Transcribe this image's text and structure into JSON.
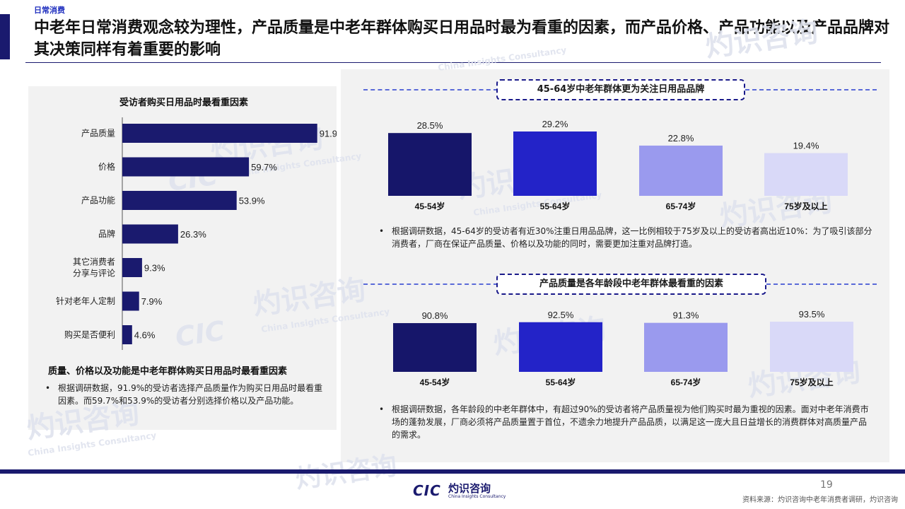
{
  "header": {
    "section_tag": "日常消费",
    "title": "中老年日常消费观念较为理性，产品质量是中老年群体购买日用品时最为看重的因素，而产品价格、产品功能以及产品品牌对其决策同样有着重要的影响"
  },
  "watermark": {
    "cic": "CIC",
    "cn": "灼识咨询",
    "en": "China Insights Consultancy"
  },
  "left": {
    "sub_heading": "质量、价格以及功能是中老年群体购买日用品时最看重因素",
    "bullet": "根据调研数据，91.9%的受访者选择产品质量作为购买日用品时最看重因素。而59.7%和53.9%的受访者分别选择价格以及产品功能。"
  },
  "right": {
    "banner1": "45-64岁中老年群体更为关注日用品品牌",
    "bullet1": "根据调研数据，45-64岁的受访者有近30%注重日用品品牌，这一比例相较于75岁及以上的受访者高出近10%：为了吸引该部分消费者，厂商在保证产品质量、价格以及功能的同时，需要更加注重对品牌打造。",
    "banner2": "产品质量是各年龄段中老年群体最看重的因素",
    "bullet2": "根据调研数据，各年龄段的中老年群体中，有超过90%的受访者将产品质量视为他们购买时最为重视的因素。面对中老年消费市场的蓬勃发展，厂商必须将产品质量置于首位，不遗余力地提升产品品质，以满足这一庞大且日益增长的消费群体对高质量产品的需求。"
  },
  "footer": {
    "page_number": "19",
    "source": "资料来源：灼识咨询中老年消费者调研，灼识咨询",
    "logo_cic": "CIC",
    "logo_cn": "灼识咨询",
    "logo_en": "China Insights Consultancy"
  },
  "chart_data": [
    {
      "type": "bar",
      "orientation": "horizontal",
      "title": "受访者购买日用品时最看重因素",
      "categories": [
        "产品质量",
        "价格",
        "产品功能",
        "品牌",
        "其它消费者分享与评论",
        "针对老年人定制",
        "购买是否便利"
      ],
      "category_lines": [
        [
          "产品质量"
        ],
        [
          "价格"
        ],
        [
          "产品功能"
        ],
        [
          "品牌"
        ],
        [
          "其它消费者",
          "分享与评论"
        ],
        [
          "针对老年人定制"
        ],
        [
          "购买是否便利"
        ]
      ],
      "values": [
        91.9,
        59.7,
        53.9,
        26.3,
        9.3,
        7.9,
        4.6
      ],
      "labels": [
        "91.9%",
        "59.7%",
        "53.9%",
        "26.3%",
        "9.3%",
        "7.9%",
        "4.6%"
      ],
      "xlim": [
        0,
        100
      ],
      "color": "#1a1a6e"
    },
    {
      "type": "bar",
      "categories": [
        "45-54岁",
        "55-64岁",
        "65-74岁",
        "75岁及以上"
      ],
      "values": [
        28.5,
        29.2,
        22.8,
        19.4
      ],
      "labels": [
        "28.5%",
        "29.2%",
        "22.8%",
        "19.4%"
      ],
      "ylim": [
        0,
        29.2
      ],
      "colors": [
        "#16166a",
        "#2323c8",
        "#9a9aee",
        "#d9d9f8"
      ]
    },
    {
      "type": "bar",
      "categories": [
        "45-54岁",
        "55-64岁",
        "65-74岁",
        "75岁及以上"
      ],
      "values": [
        90.8,
        92.5,
        91.3,
        93.5
      ],
      "labels": [
        "90.8%",
        "92.5%",
        "91.3%",
        "93.5%"
      ],
      "ylim": [
        0,
        93.5
      ],
      "colors": [
        "#16166a",
        "#2323c8",
        "#9a9aee",
        "#d9d9f8"
      ]
    }
  ]
}
